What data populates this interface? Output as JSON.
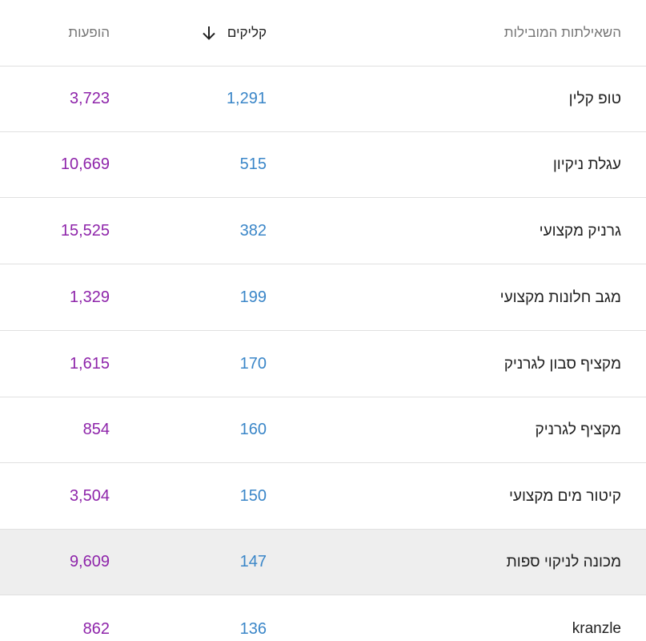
{
  "columns": {
    "impressions": "הופעות",
    "clicks": "קליקים",
    "queries": "השאילתות המובילות"
  },
  "sort": {
    "column": "clicks",
    "direction": "descending",
    "icon": "arrow-down-icon"
  },
  "colors": {
    "impressions": "#8e24aa",
    "clicks": "#3a86c8",
    "highlight_row": "#eeeeee"
  },
  "rows": [
    {
      "query": "טופ קלין",
      "clicks": "1,291",
      "impressions": "3,723"
    },
    {
      "query": "עגלת ניקיון",
      "clicks": "515",
      "impressions": "10,669"
    },
    {
      "query": "גרניק מקצועי",
      "clicks": "382",
      "impressions": "15,525"
    },
    {
      "query": "מגב חלונות מקצועי",
      "clicks": "199",
      "impressions": "1,329"
    },
    {
      "query": "מקציף סבון לגרניק",
      "clicks": "170",
      "impressions": "1,615"
    },
    {
      "query": "מקציף לגרניק",
      "clicks": "160",
      "impressions": "854"
    },
    {
      "query": "קיטור מים מקצועי",
      "clicks": "150",
      "impressions": "3,504"
    },
    {
      "query": "מכונה לניקוי ספות",
      "clicks": "147",
      "impressions": "9,609",
      "highlighted": true
    },
    {
      "query": "kranzle",
      "clicks": "136",
      "impressions": "862"
    }
  ]
}
